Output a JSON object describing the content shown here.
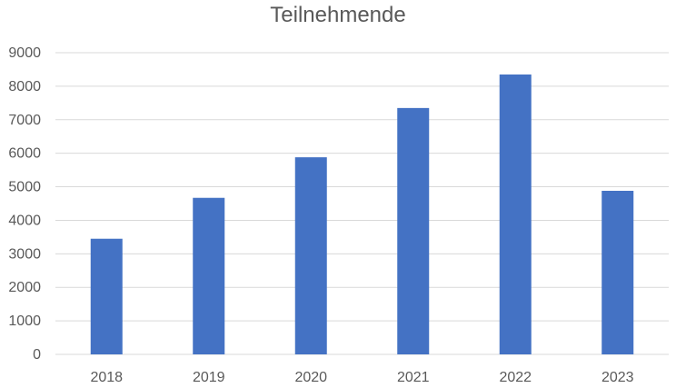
{
  "chart_data": {
    "type": "bar",
    "title": "Teilnehmende",
    "categories": [
      "2018",
      "2019",
      "2020",
      "2021",
      "2022",
      "2023"
    ],
    "series": [
      {
        "values": [
          3450,
          4670,
          5880,
          7350,
          8350,
          4880
        ],
        "color": "#4472C4"
      }
    ],
    "xlabel": "",
    "ylabel": "",
    "ylim": [
      0,
      9000
    ],
    "yticks": [
      "0",
      "1000",
      "2000",
      "3000",
      "4000",
      "5000",
      "6000",
      "7000",
      "8000",
      "9000"
    ],
    "grid": true,
    "legend": "none",
    "colors": {
      "bar": "#4472C4",
      "grid": "#D9D9D9",
      "text": "#595959"
    }
  }
}
